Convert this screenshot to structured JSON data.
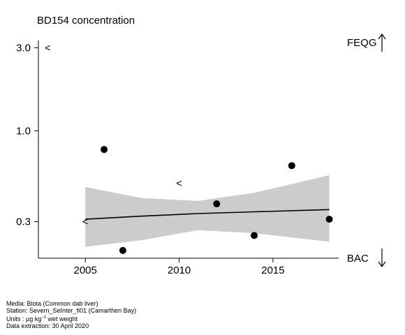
{
  "chart_data": {
    "type": "scatter",
    "title": "BD154 concentration",
    "y_scale": "log",
    "xlim": [
      2002.5,
      2018.5
    ],
    "ylim": [
      0.185,
      3.3
    ],
    "x_ticks": [
      2005,
      2010,
      2015
    ],
    "y_ticks": [
      {
        "value": 0.3,
        "label": "0.3"
      },
      {
        "value": 1.0,
        "label": "1.0"
      },
      {
        "value": 3.0,
        "label": "3.0"
      }
    ],
    "points": [
      {
        "x": 2006,
        "y": 0.78
      },
      {
        "x": 2007,
        "y": 0.205
      },
      {
        "x": 2012,
        "y": 0.38
      },
      {
        "x": 2014,
        "y": 0.25
      },
      {
        "x": 2016,
        "y": 0.63
      },
      {
        "x": 2018,
        "y": 0.31
      }
    ],
    "less_than_markers": [
      {
        "x": 2003,
        "y": 3.0,
        "label": "<"
      },
      {
        "x": 2005,
        "y": 0.3,
        "label": "<"
      },
      {
        "x": 2010,
        "y": 0.5,
        "label": "<"
      }
    ],
    "trend": {
      "x": [
        2005,
        2008,
        2011,
        2014,
        2018
      ],
      "fit": [
        0.31,
        0.323,
        0.334,
        0.342,
        0.352
      ],
      "lower": [
        0.215,
        0.235,
        0.268,
        0.258,
        0.23
      ],
      "upper": [
        0.475,
        0.41,
        0.395,
        0.44,
        0.555
      ]
    },
    "reference_lines": [
      {
        "label": "FEQG",
        "arrow": "up"
      },
      {
        "label": "BAC",
        "arrow": "down"
      }
    ],
    "colors": {
      "band": "#cccccc",
      "points": "#000000",
      "line": "#000000"
    }
  },
  "footer": {
    "media": "Media: Biota (Common dab liver)",
    "station": "Station: Severn_SeInter_fi01 (Camarthen Bay)",
    "units_prefix": "Units : µg kg",
    "units_sup": "−1",
    "units_suffix": " wet weight",
    "extraction": "Data extraction: 30 April 2020"
  }
}
